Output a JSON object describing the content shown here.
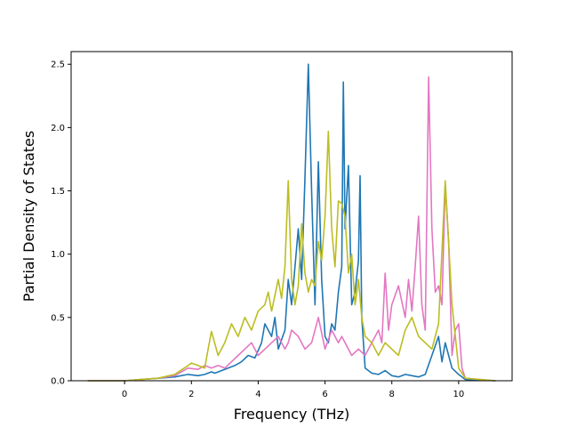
{
  "chart_data": {
    "type": "line",
    "title": "",
    "xlabel": "Frequency (THz)",
    "ylabel": "Partial Density of States",
    "xlim": [
      -1.6,
      11.6
    ],
    "ylim": [
      0,
      2.6
    ],
    "xticks": [
      0,
      2,
      4,
      6,
      8,
      10
    ],
    "yticks": [
      0.0,
      0.5,
      1.0,
      1.5,
      2.0,
      2.5
    ],
    "xtick_labels": [
      "0",
      "2",
      "4",
      "6",
      "8",
      "10"
    ],
    "ytick_labels": [
      "0.0",
      "0.5",
      "1.0",
      "1.5",
      "2.0",
      "2.5"
    ],
    "grid": false,
    "legend": false,
    "series": [
      {
        "color": "#1f77b4",
        "x": [
          -1.1,
          0.0,
          0.5,
          1.0,
          1.5,
          1.9,
          2.2,
          2.4,
          2.6,
          2.7,
          2.9,
          3.1,
          3.3,
          3.5,
          3.7,
          3.9,
          4.1,
          4.2,
          4.4,
          4.5,
          4.6,
          4.8,
          4.9,
          5.0,
          5.1,
          5.2,
          5.3,
          5.4,
          5.5,
          5.6,
          5.7,
          5.8,
          5.9,
          6.0,
          6.1,
          6.2,
          6.3,
          6.4,
          6.5,
          6.55,
          6.6,
          6.7,
          6.8,
          6.9,
          7.0,
          7.05,
          7.1,
          7.2,
          7.4,
          7.6,
          7.8,
          8.0,
          8.2,
          8.4,
          8.6,
          8.8,
          9.0,
          9.2,
          9.4,
          9.5,
          9.6,
          9.7,
          9.8,
          10.0,
          10.2,
          11.1
        ],
        "y": [
          0.0,
          0.0,
          0.01,
          0.02,
          0.03,
          0.05,
          0.04,
          0.05,
          0.07,
          0.06,
          0.08,
          0.1,
          0.12,
          0.15,
          0.2,
          0.18,
          0.3,
          0.45,
          0.35,
          0.5,
          0.25,
          0.4,
          0.8,
          0.6,
          0.9,
          1.2,
          0.8,
          1.6,
          2.5,
          1.5,
          0.6,
          1.73,
          0.8,
          0.35,
          0.3,
          0.45,
          0.4,
          0.7,
          0.9,
          2.36,
          1.2,
          1.7,
          0.6,
          0.7,
          0.95,
          1.62,
          0.5,
          0.1,
          0.06,
          0.05,
          0.08,
          0.04,
          0.03,
          0.05,
          0.04,
          0.03,
          0.05,
          0.2,
          0.35,
          0.15,
          0.3,
          0.2,
          0.1,
          0.05,
          0.01,
          0.0
        ]
      },
      {
        "color": "#e377c2",
        "x": [
          -1.1,
          0.0,
          0.5,
          1.0,
          1.5,
          1.9,
          2.2,
          2.4,
          2.6,
          2.8,
          3.0,
          3.2,
          3.4,
          3.6,
          3.8,
          4.0,
          4.2,
          4.4,
          4.6,
          4.8,
          4.9,
          5.0,
          5.2,
          5.4,
          5.6,
          5.8,
          6.0,
          6.2,
          6.4,
          6.5,
          6.6,
          6.8,
          7.0,
          7.2,
          7.4,
          7.6,
          7.7,
          7.8,
          7.9,
          8.0,
          8.2,
          8.4,
          8.5,
          8.6,
          8.7,
          8.8,
          8.9,
          9.0,
          9.1,
          9.2,
          9.3,
          9.4,
          9.5,
          9.6,
          9.7,
          9.8,
          9.9,
          10.0,
          10.1,
          10.2,
          11.1
        ],
        "y": [
          0.0,
          0.0,
          0.01,
          0.02,
          0.04,
          0.1,
          0.09,
          0.12,
          0.1,
          0.12,
          0.1,
          0.15,
          0.2,
          0.25,
          0.3,
          0.2,
          0.25,
          0.3,
          0.35,
          0.25,
          0.3,
          0.4,
          0.35,
          0.25,
          0.3,
          0.5,
          0.25,
          0.4,
          0.3,
          0.35,
          0.3,
          0.2,
          0.25,
          0.2,
          0.3,
          0.4,
          0.3,
          0.85,
          0.4,
          0.6,
          0.75,
          0.5,
          0.8,
          0.55,
          0.9,
          1.3,
          0.6,
          0.4,
          2.4,
          1.2,
          0.7,
          0.75,
          0.6,
          1.55,
          1.1,
          0.2,
          0.4,
          0.45,
          0.1,
          0.02,
          0.0
        ]
      },
      {
        "color": "#bcbd22",
        "x": [
          -1.1,
          0.0,
          0.5,
          1.0,
          1.5,
          1.9,
          2.0,
          2.2,
          2.4,
          2.5,
          2.6,
          2.8,
          3.0,
          3.2,
          3.4,
          3.6,
          3.8,
          4.0,
          4.2,
          4.3,
          4.4,
          4.6,
          4.7,
          4.8,
          4.9,
          5.0,
          5.1,
          5.2,
          5.3,
          5.4,
          5.5,
          5.6,
          5.7,
          5.8,
          5.9,
          6.0,
          6.1,
          6.2,
          6.3,
          6.4,
          6.5,
          6.6,
          6.7,
          6.8,
          6.9,
          7.0,
          7.1,
          7.2,
          7.4,
          7.6,
          7.8,
          8.0,
          8.2,
          8.4,
          8.6,
          8.8,
          9.0,
          9.2,
          9.4,
          9.6,
          9.8,
          10.0,
          10.2,
          11.1
        ],
        "y": [
          0.0,
          0.0,
          0.01,
          0.02,
          0.05,
          0.12,
          0.14,
          0.12,
          0.1,
          0.25,
          0.39,
          0.2,
          0.3,
          0.45,
          0.35,
          0.5,
          0.4,
          0.55,
          0.6,
          0.7,
          0.55,
          0.8,
          0.65,
          0.9,
          1.58,
          0.8,
          0.6,
          0.75,
          1.24,
          0.85,
          0.7,
          0.8,
          0.75,
          1.1,
          0.95,
          1.3,
          1.97,
          1.2,
          0.9,
          1.42,
          1.4,
          1.3,
          0.85,
          1.0,
          0.6,
          0.8,
          0.5,
          0.35,
          0.3,
          0.2,
          0.3,
          0.25,
          0.2,
          0.4,
          0.5,
          0.35,
          0.3,
          0.25,
          0.45,
          1.58,
          0.6,
          0.1,
          0.02,
          0.0
        ]
      }
    ]
  }
}
